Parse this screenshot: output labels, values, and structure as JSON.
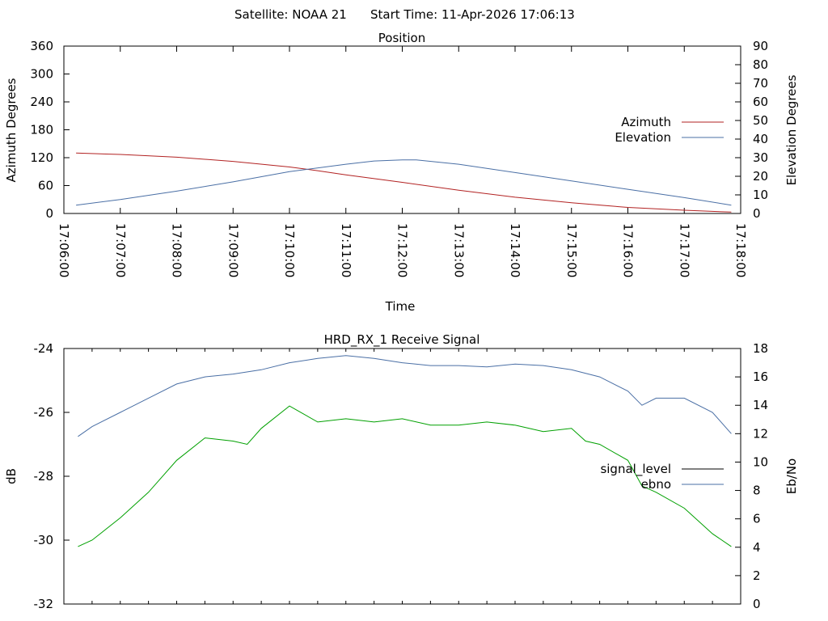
{
  "header": {
    "satellite": "Satellite: NOAA 21",
    "start_time": "Start Time: 11-Apr-2026 17:06:13"
  },
  "chart_data": [
    {
      "type": "line",
      "title": "Position",
      "xlabel": "Time",
      "ylabel": "Azimuth Degrees",
      "y2label": "Elevation Degrees",
      "x_tick_labels": [
        "17:06:00",
        "17:07:00",
        "17:08:00",
        "17:09:00",
        "17:10:00",
        "17:11:00",
        "17:12:00",
        "17:13:00",
        "17:14:00",
        "17:15:00",
        "17:16:00",
        "17:17:00",
        "17:18:00"
      ],
      "xlim": [
        "17:06:00",
        "17:18:00"
      ],
      "ylim": [
        0,
        360
      ],
      "y_ticks": [
        0,
        60,
        120,
        180,
        240,
        300,
        360
      ],
      "y2lim": [
        0,
        90
      ],
      "y2_ticks": [
        0,
        10,
        20,
        30,
        40,
        50,
        60,
        70,
        80,
        90
      ],
      "legend_position": "right",
      "grid": false,
      "series": [
        {
          "name": "Azimuth",
          "axis": "y",
          "color": "#b22222",
          "x": [
            "17:06:13",
            "17:07:00",
            "17:08:00",
            "17:09:00",
            "17:10:00",
            "17:10:30",
            "17:11:00",
            "17:12:00",
            "17:13:00",
            "17:14:00",
            "17:15:00",
            "17:16:00",
            "17:17:00",
            "17:17:50"
          ],
          "y": [
            130,
            127,
            121,
            112,
            100,
            92,
            83,
            67,
            50,
            35,
            23,
            13,
            7,
            3
          ]
        },
        {
          "name": "Elevation",
          "axis": "y2",
          "color": "#4a6fa5",
          "x": [
            "17:06:13",
            "17:07:00",
            "17:08:00",
            "17:09:00",
            "17:10:00",
            "17:11:00",
            "17:11:30",
            "17:12:00",
            "17:12:15",
            "17:13:00",
            "17:14:00",
            "17:15:00",
            "17:16:00",
            "17:17:00",
            "17:17:50"
          ],
          "y": [
            4.5,
            7.5,
            12,
            17,
            22.5,
            26.5,
            28.2,
            28.8,
            28.8,
            26.5,
            22,
            17.5,
            13,
            8.5,
            4.5
          ]
        }
      ]
    },
    {
      "type": "line",
      "title": "HRD_RX_1 Receive Signal",
      "xlabel": "",
      "ylabel": "dB",
      "y2label": "Eb/No",
      "xlim": [
        "17:06:00",
        "17:18:00"
      ],
      "ylim": [
        -32,
        -24
      ],
      "y_ticks": [
        -32,
        -30,
        -28,
        -26,
        -24
      ],
      "y2lim": [
        0,
        18
      ],
      "y2_ticks": [
        0,
        2,
        4,
        6,
        8,
        10,
        12,
        14,
        16,
        18
      ],
      "legend_position": "right",
      "grid": false,
      "series": [
        {
          "name": "signal_level",
          "axis": "y",
          "color": "#000000",
          "x": [],
          "y": []
        },
        {
          "name": "ebno",
          "axis": "y2",
          "color": "#4a6fa5",
          "x": [
            "17:06:15",
            "17:06:30",
            "17:07:00",
            "17:07:30",
            "17:08:00",
            "17:08:30",
            "17:09:00",
            "17:09:30",
            "17:10:00",
            "17:10:30",
            "17:11:00",
            "17:11:30",
            "17:12:00",
            "17:12:30",
            "17:13:00",
            "17:13:30",
            "17:14:00",
            "17:14:30",
            "17:15:00",
            "17:15:30",
            "17:16:00",
            "17:16:15",
            "17:16:30",
            "17:17:00",
            "17:17:30",
            "17:17:50"
          ],
          "y": [
            11.8,
            12.5,
            13.5,
            14.5,
            15.5,
            16.0,
            16.2,
            16.5,
            17.0,
            17.3,
            17.5,
            17.3,
            17.0,
            16.8,
            16.8,
            16.7,
            16.9,
            16.8,
            16.5,
            16.0,
            15.0,
            14.0,
            14.5,
            14.5,
            13.5,
            12.0
          ]
        },
        {
          "name": "",
          "axis": "y",
          "color": "#00a000",
          "x": [
            "17:06:15",
            "17:06:30",
            "17:07:00",
            "17:07:30",
            "17:08:00",
            "17:08:30",
            "17:09:00",
            "17:09:15",
            "17:09:30",
            "17:10:00",
            "17:10:30",
            "17:11:00",
            "17:11:30",
            "17:12:00",
            "17:12:30",
            "17:13:00",
            "17:13:30",
            "17:14:00",
            "17:14:30",
            "17:15:00",
            "17:15:15",
            "17:15:30",
            "17:16:00",
            "17:16:15",
            "17:16:30",
            "17:17:00",
            "17:17:30",
            "17:17:50"
          ],
          "y": [
            -30.2,
            -30.0,
            -29.3,
            -28.5,
            -27.5,
            -26.8,
            -26.9,
            -27.0,
            -26.5,
            -25.8,
            -26.3,
            -26.2,
            -26.3,
            -26.2,
            -26.4,
            -26.4,
            -26.3,
            -26.4,
            -26.6,
            -26.5,
            -26.9,
            -27.0,
            -27.5,
            -28.3,
            -28.5,
            -29.0,
            -29.8,
            -30.2
          ]
        }
      ]
    }
  ]
}
